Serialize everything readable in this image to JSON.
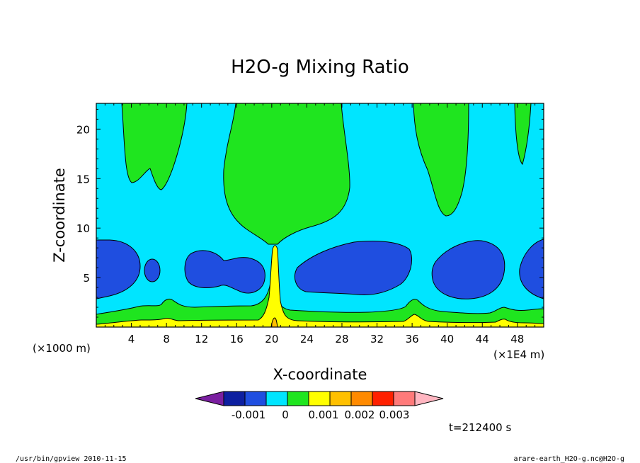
{
  "chart_data": {
    "type": "contour",
    "title": "H2O-g Mixing Ratio",
    "xlabel": "X-coordinate",
    "ylabel": "Z-coordinate",
    "x_unit_left": "(×1000 m)",
    "x_unit_right": "(×1E4 m)",
    "x_ticks": [
      "4",
      "8",
      "12",
      "16",
      "20",
      "24",
      "28",
      "32",
      "36",
      "40",
      "44",
      "48"
    ],
    "y_ticks": [
      "5",
      "10",
      "15",
      "20"
    ],
    "xlim": [
      0,
      51
    ],
    "ylim": [
      0,
      22.6
    ],
    "time_label": "t=212400 s",
    "colorbar": {
      "colors": [
        "#7a1fa0",
        "#0d1fa0",
        "#1f4ee0",
        "#00e5ff",
        "#1fe51f",
        "#ffff00",
        "#ffc000",
        "#ff8a00",
        "#ff2000",
        "#ff7a7a",
        "#ffb6c1"
      ],
      "labels": [
        "-0.001",
        "0",
        "0.001",
        "0.002",
        "0.003"
      ]
    },
    "regions": [
      {
        "level": "below -0.001",
        "color": "#1f4ee0",
        "description": "mid-level dry pockets near z 4-9"
      },
      {
        "level": "0 to 0.001",
        "color": "#1fe51f",
        "description": "upper-level moist columns at x about 3-10, 15-28, 36-42, 47-49"
      },
      {
        "level": "0.001 to 0.002",
        "color": "#ffff00",
        "description": "near-surface moist layer and central plume at x about 20"
      }
    ]
  },
  "footer": {
    "left": "/usr/bin/gpview  2010-11-15",
    "right": "arare-earth_H2O-g.nc@H2O-g"
  }
}
